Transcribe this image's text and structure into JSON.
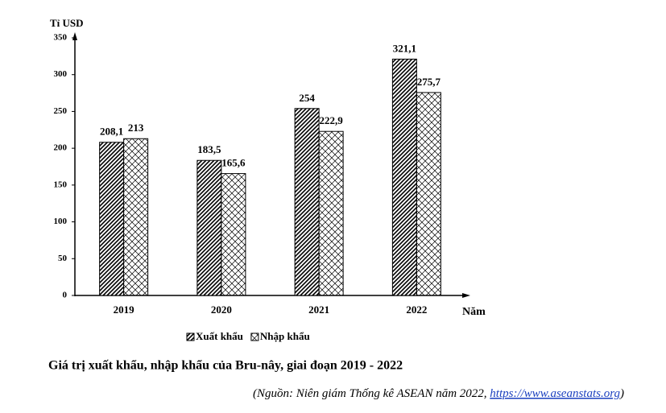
{
  "chart_data": {
    "type": "bar",
    "title": "Giá trị xuất khẩu, nhập khẩu của Bru-nây, giai đoạn 2019 - 2022",
    "source": {
      "text": "(Nguồn: Niên giám Thống kê ASEAN năm 2022, ",
      "link": "https://www.aseanstats.org",
      "end": ")"
    },
    "y_label": "Tỉ USD",
    "x_label": "Năm",
    "categories": [
      "2019",
      "2020",
      "2021",
      "2022"
    ],
    "series": [
      {
        "name": "Xuất khẩu",
        "color": "#000000",
        "pattern": "diagonal",
        "values": [
          208.1,
          183.5,
          254,
          321.1
        ],
        "value_labels": [
          "208,1",
          "183,5",
          "254",
          "321,1"
        ]
      },
      {
        "name": "Nhập khẩu",
        "color": "#000000",
        "pattern": "crosshatch",
        "values": [
          213,
          165.6,
          222.9,
          275.7
        ],
        "value_labels": [
          "213",
          "165,6",
          "222,9",
          "275,7"
        ]
      }
    ],
    "ylim": [
      0,
      350
    ],
    "yticks": [
      0,
      50,
      100,
      150,
      200,
      250,
      300,
      350
    ],
    "grid": false
  }
}
